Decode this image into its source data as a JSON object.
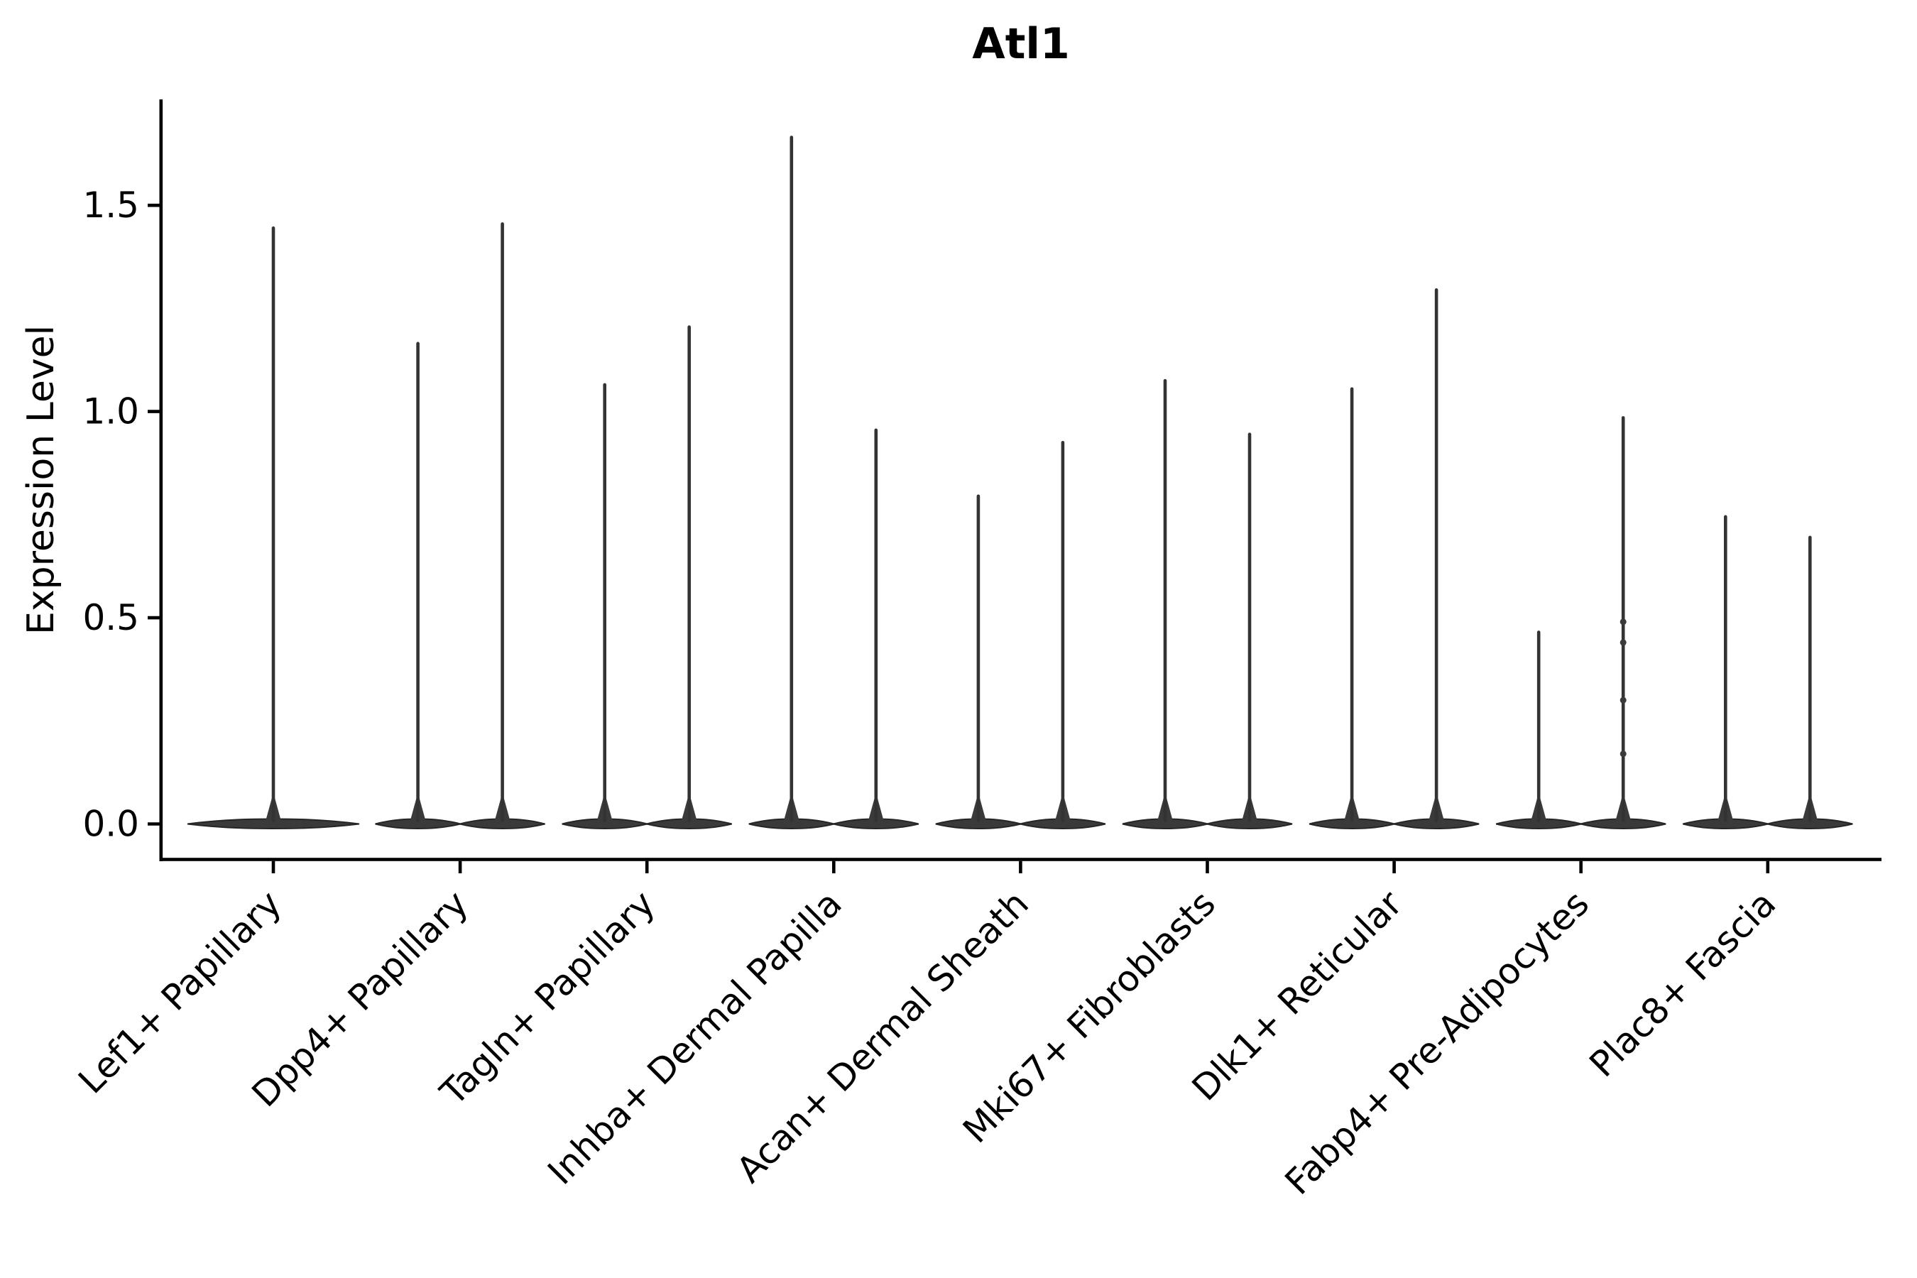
{
  "title": "Atl1",
  "y_axis": {
    "label": "Expression Level",
    "ticks": [
      "0.0",
      "0.5",
      "1.0",
      "1.5"
    ]
  },
  "chart_data": {
    "type": "violin",
    "title": "Atl1",
    "ylabel": "Expression Level",
    "xlabel": "",
    "ylim": [
      -0.09,
      1.76
    ],
    "ytick_values": [
      0.0,
      0.5,
      1.0,
      1.5
    ],
    "grid": false,
    "legend": "none",
    "shape_note": "needle violins: almost all density flat at 0 with a thin vertical tail up to max; first category one wide violin, all others two narrow violins side by side",
    "categories": [
      {
        "label": "Lef1+ Papillary",
        "violins": [
          {
            "max": 1.45,
            "span": "full"
          }
        ]
      },
      {
        "label": "Dpp4+ Papillary",
        "violins": [
          {
            "max": 1.17
          },
          {
            "max": 1.46
          }
        ]
      },
      {
        "label": "Tagln+ Papillary",
        "violins": [
          {
            "max": 1.07
          },
          {
            "max": 1.21
          }
        ]
      },
      {
        "label": "Inhba+ Dermal Papilla",
        "violins": [
          {
            "max": 1.67
          },
          {
            "max": 0.96
          }
        ]
      },
      {
        "label": "Acan+ Dermal Sheath",
        "violins": [
          {
            "max": 0.8
          },
          {
            "max": 0.93
          }
        ]
      },
      {
        "label": "Mki67+ Fibroblasts",
        "violins": [
          {
            "max": 1.08
          },
          {
            "max": 0.95
          }
        ]
      },
      {
        "label": "Dlk1+ Reticular",
        "violins": [
          {
            "max": 1.06
          },
          {
            "max": 1.3
          }
        ]
      },
      {
        "label": "Fabp4+ Pre-Adipocytes",
        "violins": [
          {
            "max": 0.47
          },
          {
            "max": 0.99,
            "points": [
              0.49,
              0.44,
              0.3,
              0.17
            ]
          }
        ]
      },
      {
        "label": "Plac8+ Fascia",
        "violins": [
          {
            "max": 0.75
          },
          {
            "max": 0.7
          }
        ]
      }
    ],
    "colors": {
      "violin_fill": "#3a3a3a",
      "violin_stroke": "#262626",
      "spike": "#333333",
      "axis": "#000000",
      "text": "#000000",
      "background": "#ffffff"
    }
  }
}
